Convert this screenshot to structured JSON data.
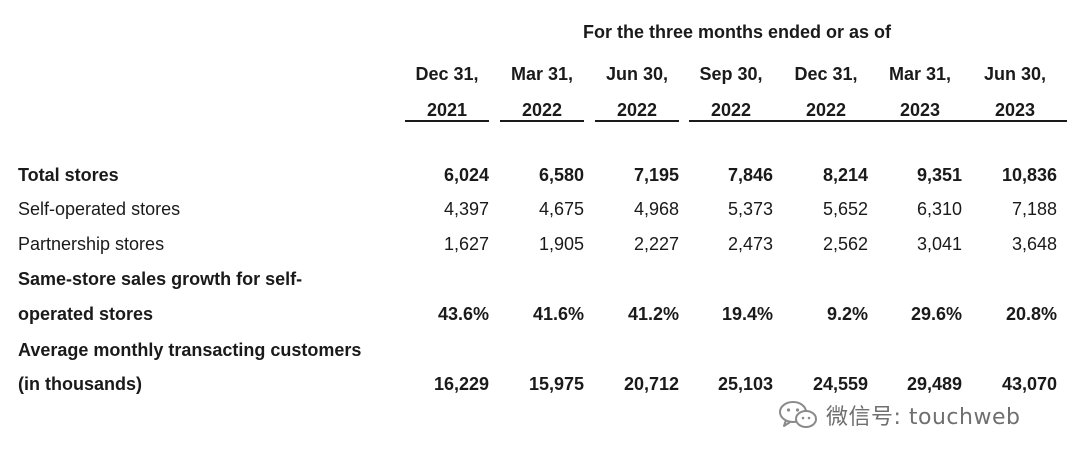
{
  "table": {
    "super_header": "For the three months ended or as of",
    "columns": [
      {
        "line1": "Dec 31,",
        "line2": "2021"
      },
      {
        "line1": "Mar 31,",
        "line2": "2022"
      },
      {
        "line1": "Jun 30,",
        "line2": "2022"
      },
      {
        "line1": "Sep 30,",
        "line2": "2022"
      },
      {
        "line1": "Dec 31,",
        "line2": "2022"
      },
      {
        "line1": "Mar 31,",
        "line2": "2023"
      },
      {
        "line1": "Jun 30,",
        "line2": "2023"
      }
    ],
    "rows": [
      {
        "label": "Total stores",
        "bold": true,
        "values": [
          "6,024",
          "6,580",
          "7,195",
          "7,846",
          "8,214",
          "9,351",
          "10,836"
        ]
      },
      {
        "label": "Self-operated stores",
        "bold": false,
        "values": [
          "4,397",
          "4,675",
          "4,968",
          "5,373",
          "5,652",
          "6,310",
          "7,188"
        ]
      },
      {
        "label": "Partnership stores",
        "bold": false,
        "values": [
          "1,627",
          "1,905",
          "2,227",
          "2,473",
          "2,562",
          "3,041",
          "3,648"
        ]
      },
      {
        "label": "Same-store sales growth for self-",
        "label_line2": "operated stores",
        "bold": true,
        "values": [
          "43.6%",
          "41.6%",
          "41.2%",
          "19.4%",
          "9.2%",
          "29.6%",
          "20.8%"
        ]
      },
      {
        "label": "Average monthly transacting customers",
        "label_line2": "(in thousands)",
        "bold": true,
        "values": [
          "16,229",
          "15,975",
          "20,712",
          "25,103",
          "24,559",
          "29,489",
          "43,070"
        ]
      }
    ]
  },
  "watermark": {
    "text": "微信号: touchweb",
    "icon": "wechat-icon",
    "color": "#6f6f6f"
  }
}
